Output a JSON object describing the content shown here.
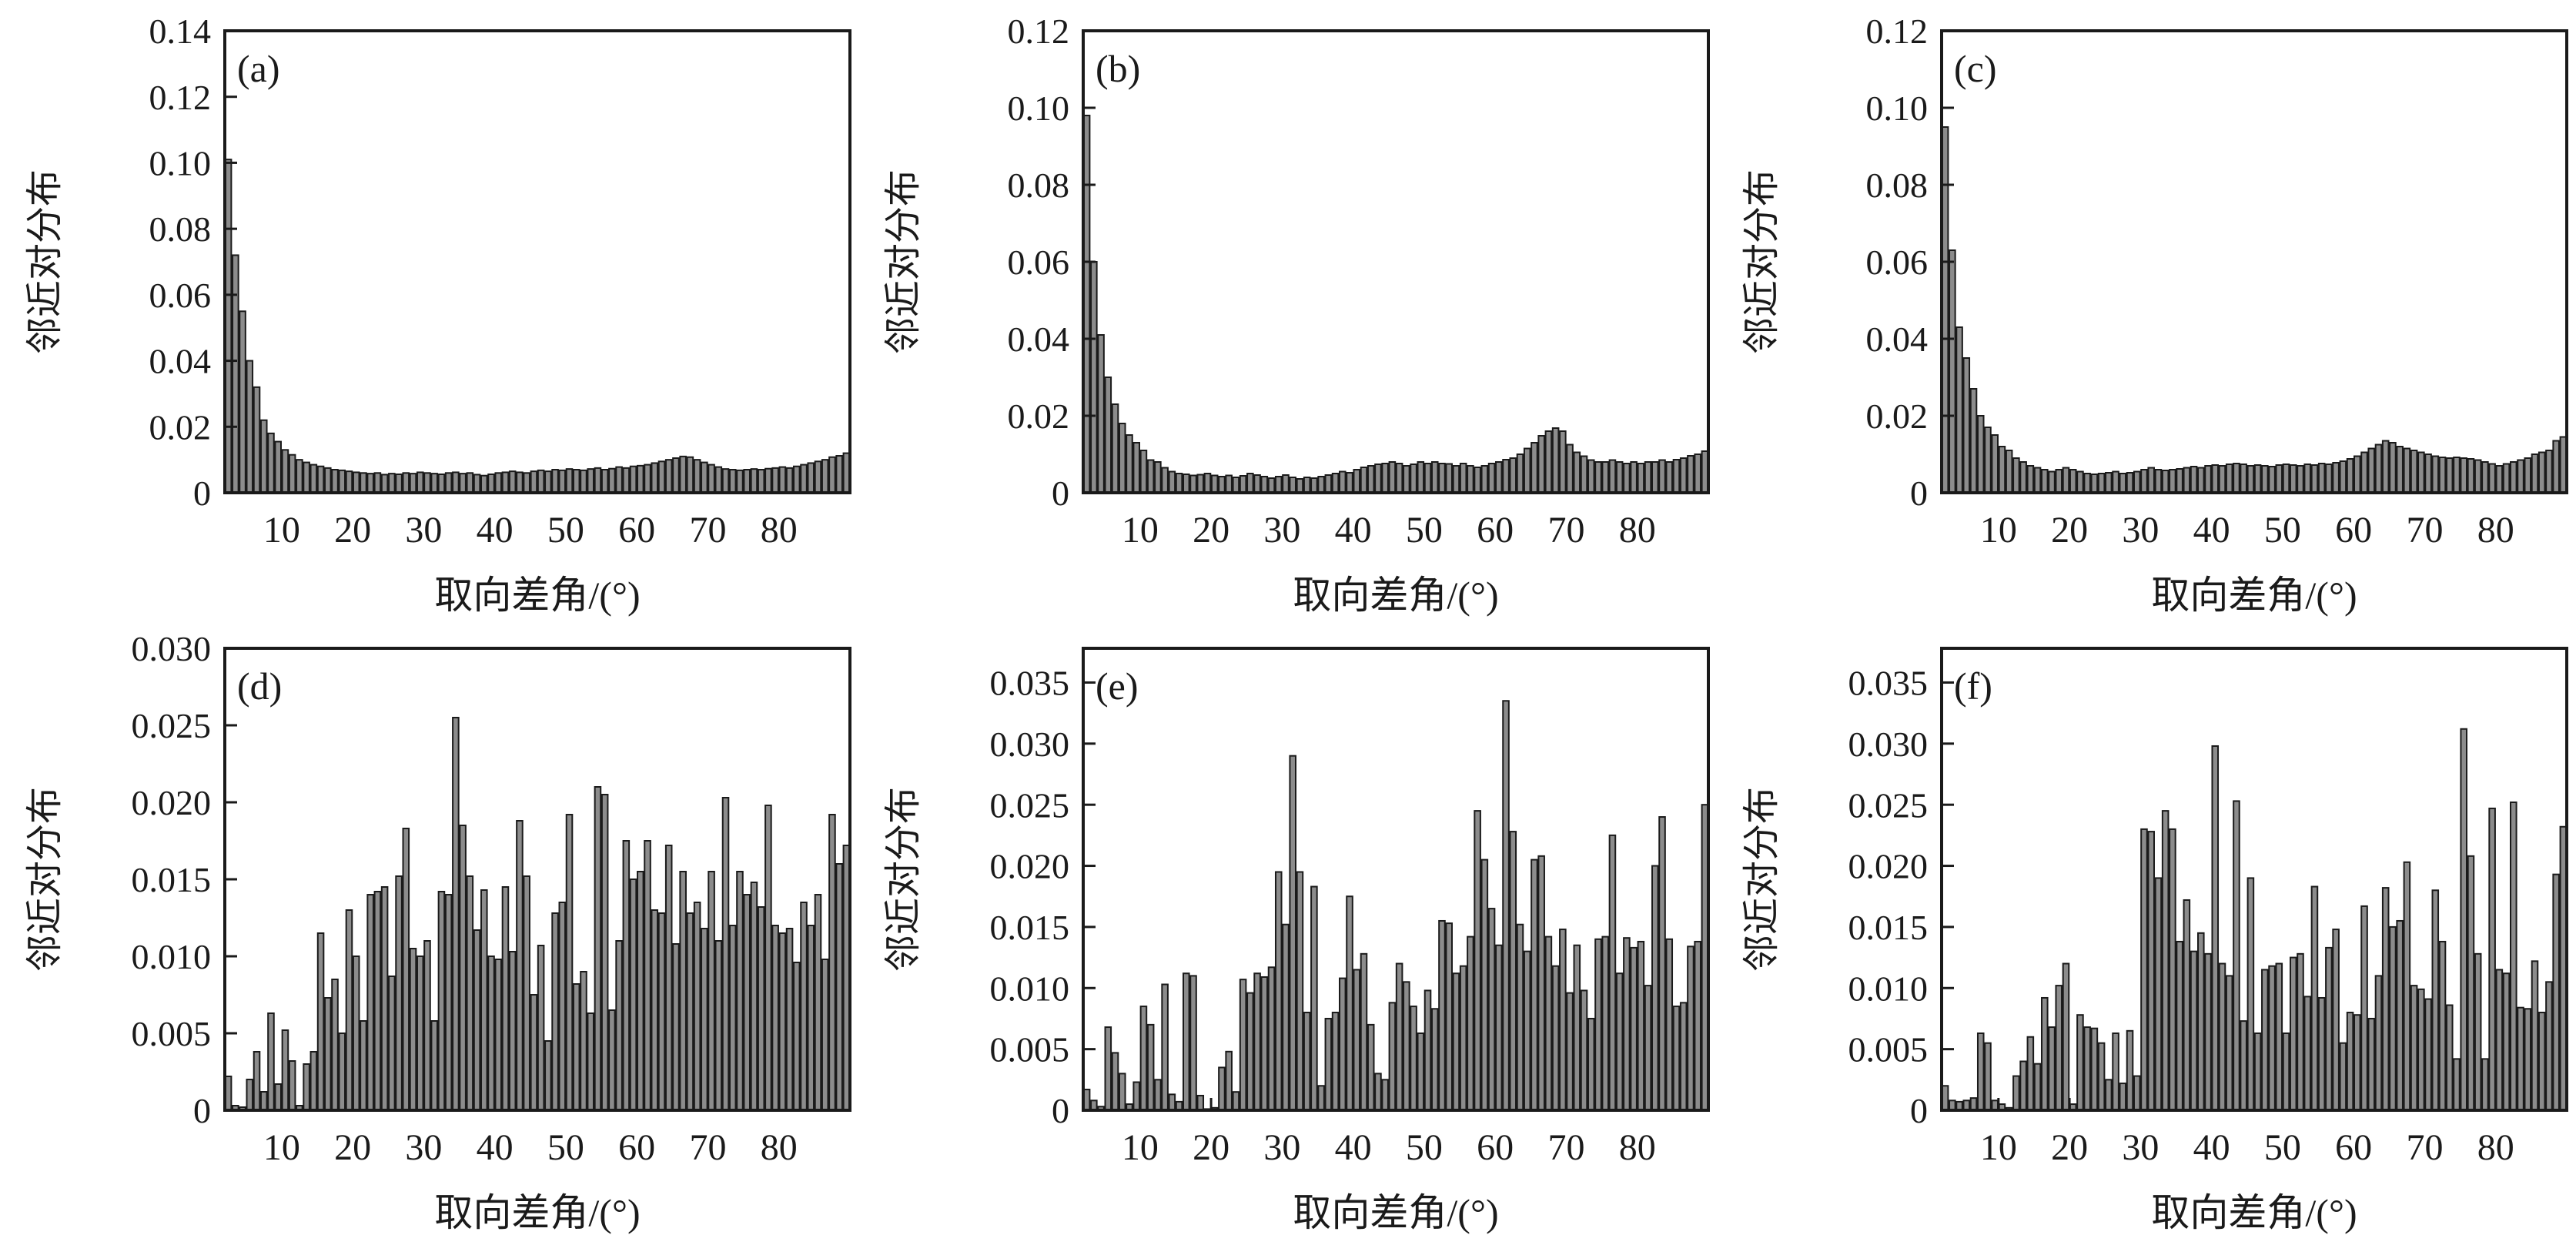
{
  "figure": {
    "background": "#ffffff",
    "bar_fill": "#8c8c8c",
    "bar_stroke": "#1a1a1a",
    "axis_color": "#1a1a1a",
    "xlabel": "取向差角/(°)",
    "ylabel": "邻近对分布",
    "x_tick_labels": [
      "10",
      "20",
      "30",
      "40",
      "50",
      "60",
      "70",
      "80"
    ],
    "x_tick_values": [
      10,
      20,
      30,
      40,
      50,
      60,
      70,
      80
    ],
    "x_range": [
      2,
      90
    ]
  },
  "chart_data": [
    {
      "type": "bar",
      "panel": "(a)",
      "xlabel": "取向差角/(°)",
      "ylabel": "邻近对分布",
      "x_start": 2,
      "bin_width": 1,
      "ylim": [
        0,
        0.14
      ],
      "y_tick_values": [
        0,
        0.02,
        0.04,
        0.06,
        0.08,
        0.1,
        0.12,
        0.14
      ],
      "y_tick_labels": [
        "0",
        "0.02",
        "0.04",
        "0.06",
        "0.08",
        "0.10",
        "0.12",
        "0.14"
      ],
      "values": [
        0.101,
        0.072,
        0.055,
        0.04,
        0.032,
        0.022,
        0.018,
        0.0155,
        0.013,
        0.0115,
        0.01,
        0.0092,
        0.0085,
        0.008,
        0.0075,
        0.007,
        0.0068,
        0.0065,
        0.0062,
        0.006,
        0.0058,
        0.006,
        0.0055,
        0.0058,
        0.0056,
        0.006,
        0.0058,
        0.0062,
        0.006,
        0.0058,
        0.0056,
        0.006,
        0.0062,
        0.0058,
        0.006,
        0.0055,
        0.0052,
        0.0056,
        0.006,
        0.0062,
        0.0065,
        0.0062,
        0.006,
        0.0065,
        0.0068,
        0.0065,
        0.007,
        0.0068,
        0.0072,
        0.007,
        0.0068,
        0.0072,
        0.0075,
        0.007,
        0.0073,
        0.0078,
        0.0075,
        0.008,
        0.0082,
        0.0085,
        0.009,
        0.0095,
        0.01,
        0.0105,
        0.011,
        0.0108,
        0.01,
        0.0092,
        0.0085,
        0.0078,
        0.0072,
        0.007,
        0.0068,
        0.007,
        0.0072,
        0.007,
        0.0073,
        0.0075,
        0.0078,
        0.0075,
        0.008,
        0.0085,
        0.009,
        0.0095,
        0.01,
        0.0108,
        0.0112,
        0.012
      ]
    },
    {
      "type": "bar",
      "panel": "(b)",
      "xlabel": "取向差角/(°)",
      "ylabel": "邻近对分布",
      "x_start": 2,
      "bin_width": 1,
      "ylim": [
        0,
        0.12
      ],
      "y_tick_values": [
        0,
        0.02,
        0.04,
        0.06,
        0.08,
        0.1,
        0.12
      ],
      "y_tick_labels": [
        "0",
        "0.02",
        "0.04",
        "0.06",
        "0.08",
        "0.10",
        "0.12"
      ],
      "values": [
        0.098,
        0.06,
        0.041,
        0.03,
        0.023,
        0.018,
        0.015,
        0.013,
        0.011,
        0.0085,
        0.008,
        0.0065,
        0.0055,
        0.005,
        0.0048,
        0.0045,
        0.0047,
        0.005,
        0.0045,
        0.0042,
        0.0045,
        0.004,
        0.0044,
        0.005,
        0.0046,
        0.0042,
        0.0038,
        0.0042,
        0.0046,
        0.004,
        0.0036,
        0.004,
        0.0038,
        0.0042,
        0.0046,
        0.005,
        0.0055,
        0.0052,
        0.006,
        0.0066,
        0.007,
        0.0074,
        0.0076,
        0.008,
        0.0076,
        0.007,
        0.0074,
        0.008,
        0.0076,
        0.008,
        0.0076,
        0.0075,
        0.007,
        0.0076,
        0.007,
        0.0066,
        0.007,
        0.0076,
        0.008,
        0.0086,
        0.009,
        0.01,
        0.0115,
        0.013,
        0.0148,
        0.016,
        0.0168,
        0.016,
        0.0125,
        0.0105,
        0.0095,
        0.0085,
        0.008,
        0.008,
        0.0085,
        0.008,
        0.0076,
        0.008,
        0.0076,
        0.008,
        0.008,
        0.0085,
        0.008,
        0.0086,
        0.009,
        0.0096,
        0.01,
        0.0108
      ]
    },
    {
      "type": "bar",
      "panel": "(c)",
      "xlabel": "取向差角/(°)",
      "ylabel": "邻近对分布",
      "x_start": 2,
      "bin_width": 1,
      "ylim": [
        0,
        0.12
      ],
      "y_tick_values": [
        0,
        0.02,
        0.04,
        0.06,
        0.08,
        0.1,
        0.12
      ],
      "y_tick_labels": [
        "0",
        "0.02",
        "0.04",
        "0.06",
        "0.08",
        "0.10",
        "0.12"
      ],
      "values": [
        0.095,
        0.063,
        0.043,
        0.035,
        0.027,
        0.02,
        0.017,
        0.015,
        0.012,
        0.011,
        0.009,
        0.008,
        0.007,
        0.0065,
        0.006,
        0.0055,
        0.006,
        0.0065,
        0.006,
        0.0055,
        0.005,
        0.0048,
        0.005,
        0.0052,
        0.0055,
        0.005,
        0.0052,
        0.0055,
        0.006,
        0.0065,
        0.006,
        0.0058,
        0.006,
        0.0062,
        0.0065,
        0.0068,
        0.0065,
        0.007,
        0.0072,
        0.007,
        0.0074,
        0.0076,
        0.0074,
        0.007,
        0.0072,
        0.007,
        0.0068,
        0.0072,
        0.0074,
        0.0072,
        0.007,
        0.0074,
        0.0072,
        0.0076,
        0.0074,
        0.0078,
        0.0082,
        0.0088,
        0.0095,
        0.0105,
        0.0115,
        0.0125,
        0.0135,
        0.013,
        0.012,
        0.0115,
        0.011,
        0.0105,
        0.01,
        0.0095,
        0.0092,
        0.009,
        0.0092,
        0.009,
        0.0088,
        0.0085,
        0.008,
        0.0075,
        0.007,
        0.0075,
        0.008,
        0.0085,
        0.009,
        0.01,
        0.0105,
        0.011,
        0.0135,
        0.0145
      ]
    },
    {
      "type": "bar",
      "panel": "(d)",
      "xlabel": "取向差角/(°)",
      "ylabel": "邻近对分布",
      "x_start": 2,
      "bin_width": 1,
      "ylim": [
        0,
        0.03
      ],
      "y_tick_values": [
        0,
        0.005,
        0.01,
        0.015,
        0.02,
        0.025,
        0.03
      ],
      "y_tick_labels": [
        "0",
        "0.005",
        "0.010",
        "0.015",
        "0.020",
        "0.025",
        "0.030"
      ],
      "values": [
        0.0022,
        0.0003,
        0.0002,
        0.002,
        0.0038,
        0.0012,
        0.0063,
        0.0017,
        0.0052,
        0.0032,
        0.0003,
        0.003,
        0.0038,
        0.0115,
        0.0073,
        0.0085,
        0.005,
        0.013,
        0.01,
        0.0058,
        0.014,
        0.0142,
        0.0145,
        0.0087,
        0.0152,
        0.0183,
        0.0105,
        0.01,
        0.011,
        0.0058,
        0.0142,
        0.014,
        0.0255,
        0.0185,
        0.0152,
        0.0117,
        0.0143,
        0.01,
        0.0098,
        0.0145,
        0.0103,
        0.0188,
        0.0152,
        0.0075,
        0.0107,
        0.0045,
        0.0128,
        0.0135,
        0.0192,
        0.0082,
        0.009,
        0.0063,
        0.021,
        0.0205,
        0.0065,
        0.011,
        0.0175,
        0.015,
        0.0155,
        0.0175,
        0.013,
        0.0128,
        0.0172,
        0.0108,
        0.0155,
        0.0128,
        0.0135,
        0.0118,
        0.0155,
        0.011,
        0.0203,
        0.012,
        0.0155,
        0.014,
        0.0148,
        0.0132,
        0.0198,
        0.012,
        0.0115,
        0.0118,
        0.0096,
        0.0135,
        0.012,
        0.014,
        0.0098,
        0.0192,
        0.016,
        0.0172
      ]
    },
    {
      "type": "bar",
      "panel": "(e)",
      "xlabel": "取向差角/(°)",
      "ylabel": "邻近对分布",
      "x_start": 2,
      "bin_width": 1,
      "ylim": [
        0,
        0.0378
      ],
      "y_tick_values": [
        0,
        0.005,
        0.01,
        0.015,
        0.02,
        0.025,
        0.03,
        0.035
      ],
      "y_tick_labels": [
        "0",
        "0.005",
        "0.010",
        "0.015",
        "0.020",
        "0.025",
        "0.030",
        "0.035"
      ],
      "values": [
        0.0017,
        0.0008,
        0.0003,
        0.0068,
        0.0047,
        0.003,
        0.0005,
        0.0023,
        0.0085,
        0.007,
        0.0025,
        0.0103,
        0.0013,
        0.0007,
        0.0112,
        0.011,
        0.0012,
        0.0001,
        0.0002,
        0.0035,
        0.0048,
        0.0015,
        0.0107,
        0.0096,
        0.0112,
        0.0109,
        0.0117,
        0.0195,
        0.0152,
        0.029,
        0.0195,
        0.008,
        0.0183,
        0.002,
        0.0075,
        0.008,
        0.0108,
        0.0175,
        0.0115,
        0.0128,
        0.007,
        0.003,
        0.0025,
        0.0088,
        0.012,
        0.0105,
        0.0085,
        0.0063,
        0.0098,
        0.0083,
        0.0155,
        0.0153,
        0.0112,
        0.0118,
        0.0142,
        0.0245,
        0.0205,
        0.0165,
        0.0135,
        0.0335,
        0.0228,
        0.0152,
        0.013,
        0.0205,
        0.0208,
        0.0142,
        0.0118,
        0.0148,
        0.0096,
        0.0135,
        0.0098,
        0.0075,
        0.014,
        0.0142,
        0.0225,
        0.0112,
        0.0141,
        0.0133,
        0.0138,
        0.0102,
        0.02,
        0.024,
        0.014,
        0.0085,
        0.0088,
        0.0134,
        0.0138,
        0.025
      ]
    },
    {
      "type": "bar",
      "panel": "(f)",
      "xlabel": "取向差角/(°)",
      "ylabel": "邻近对分布",
      "x_start": 2,
      "bin_width": 1,
      "ylim": [
        0,
        0.0378
      ],
      "y_tick_values": [
        0,
        0.005,
        0.01,
        0.015,
        0.02,
        0.025,
        0.03,
        0.035
      ],
      "y_tick_labels": [
        "0",
        "0.005",
        "0.010",
        "0.015",
        "0.020",
        "0.025",
        "0.030",
        "0.035"
      ],
      "values": [
        0.002,
        0.0008,
        0.0007,
        0.0008,
        0.001,
        0.0063,
        0.0055,
        0.0008,
        0.0005,
        0.0002,
        0.0028,
        0.004,
        0.006,
        0.0038,
        0.0092,
        0.0068,
        0.0102,
        0.012,
        0.0005,
        0.0078,
        0.0068,
        0.0067,
        0.0055,
        0.0025,
        0.0063,
        0.0022,
        0.0065,
        0.0028,
        0.023,
        0.0228,
        0.019,
        0.0245,
        0.023,
        0.0138,
        0.0172,
        0.013,
        0.0145,
        0.0128,
        0.0298,
        0.012,
        0.011,
        0.0253,
        0.0073,
        0.019,
        0.0063,
        0.0115,
        0.0118,
        0.012,
        0.0063,
        0.0125,
        0.0128,
        0.0093,
        0.0183,
        0.0092,
        0.0133,
        0.0148,
        0.0055,
        0.008,
        0.0078,
        0.0167,
        0.0075,
        0.011,
        0.0182,
        0.015,
        0.0155,
        0.0203,
        0.0102,
        0.0099,
        0.0091,
        0.018,
        0.0138,
        0.0086,
        0.0042,
        0.0312,
        0.0208,
        0.0128,
        0.0042,
        0.0247,
        0.0115,
        0.0112,
        0.0252,
        0.0084,
        0.0083,
        0.0122,
        0.008,
        0.0105,
        0.0193,
        0.0232
      ]
    }
  ]
}
